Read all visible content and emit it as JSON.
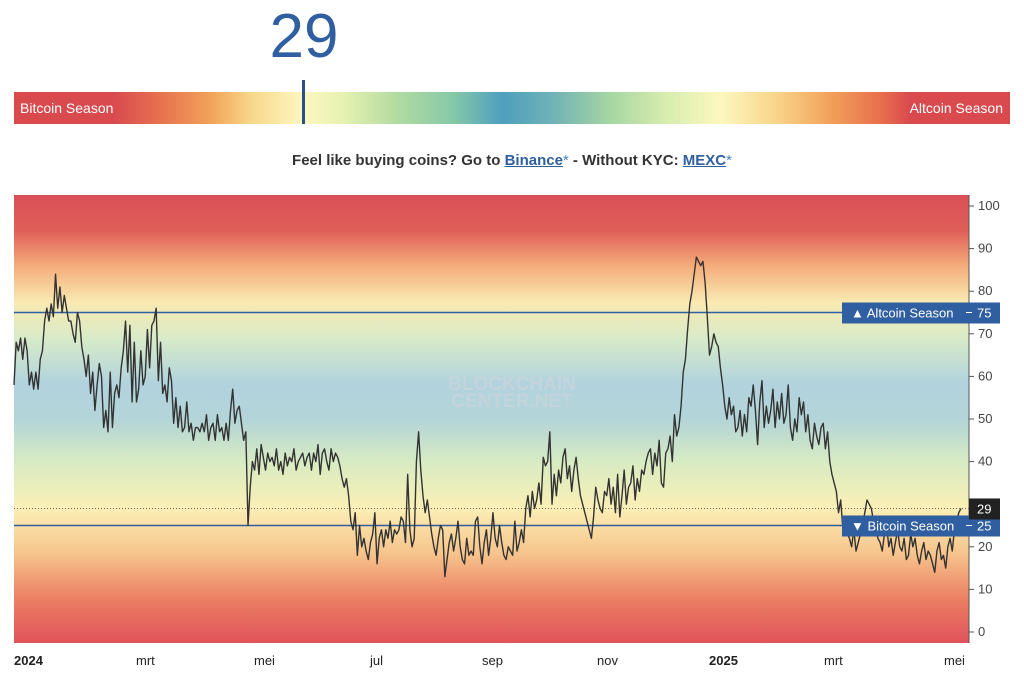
{
  "index": {
    "value": "29"
  },
  "gauge": {
    "left_label": "Bitcoin Season",
    "right_label": "Altcoin Season"
  },
  "promo": {
    "prefix": "Feel like buying coins? Go to ",
    "link1": "Binance",
    "star": "*",
    "middle": " - Without KYC: ",
    "link2": "MEXC"
  },
  "watermark": {
    "line1": "BLOCKCHAIN",
    "line2": "CENTER.NET"
  },
  "chart_data": {
    "type": "line",
    "ylim": [
      0,
      100
    ],
    "y_ticks": [
      0,
      10,
      20,
      30,
      40,
      50,
      60,
      70,
      80,
      90,
      100
    ],
    "x_ticks": [
      {
        "label": "2024",
        "bold": true
      },
      {
        "label": "mrt",
        "bold": false
      },
      {
        "label": "mei",
        "bold": false
      },
      {
        "label": "jul",
        "bold": false
      },
      {
        "label": "sep",
        "bold": false
      },
      {
        "label": "nov",
        "bold": false
      },
      {
        "label": "2025",
        "bold": true
      },
      {
        "label": "mrt",
        "bold": false
      },
      {
        "label": "mei",
        "bold": false
      }
    ],
    "thresholds": [
      {
        "label": "▲ Altcoin Season",
        "value": 75,
        "value_label": "75"
      },
      {
        "label": "▼ Bitcoin Season",
        "value": 25,
        "value_label": "25"
      }
    ],
    "current": {
      "value": 29,
      "label": "29"
    },
    "colors": {
      "line": "#333333",
      "threshold": "#2f5ea1",
      "badge": "#2f5ea1",
      "current_badge": "#222222"
    },
    "series": [
      {
        "values": [
          58,
          68,
          66,
          69,
          64,
          69,
          66,
          58,
          61,
          57,
          61,
          57,
          64,
          66,
          73,
          76,
          73,
          77,
          74,
          84,
          76,
          81,
          75,
          79,
          76,
          73,
          73,
          70,
          68,
          75,
          73,
          67,
          64,
          60,
          65,
          56,
          61,
          52,
          58,
          63,
          60,
          48,
          52,
          47,
          61,
          48,
          56,
          58,
          55,
          62,
          66,
          73,
          61,
          72,
          54,
          68,
          54,
          57,
          66,
          58,
          60,
          71,
          62,
          72,
          73,
          76,
          59,
          68,
          56,
          58,
          54,
          62,
          59,
          49,
          55,
          48,
          53,
          47,
          48,
          54,
          47,
          49,
          45,
          48,
          48,
          47,
          49,
          47,
          51,
          45,
          48,
          49,
          45,
          51,
          47,
          48,
          45,
          49,
          45,
          52,
          57,
          49,
          52,
          53,
          49,
          45,
          47,
          25,
          34,
          40,
          38,
          43,
          37,
          44,
          41,
          38,
          42,
          40,
          41,
          39,
          43,
          38,
          40,
          37,
          42,
          39,
          41,
          40,
          43,
          38,
          40,
          41,
          42,
          39,
          41,
          42,
          38,
          42,
          40,
          44,
          37,
          42,
          43,
          40,
          38,
          43,
          40,
          42,
          41,
          39,
          36,
          34,
          36,
          32,
          26,
          24,
          28,
          18,
          25,
          20,
          22,
          19,
          17,
          21,
          23,
          28,
          16,
          22,
          24,
          20,
          24,
          22,
          26,
          21,
          24,
          23,
          24,
          27,
          26,
          21,
          37,
          24,
          20,
          22,
          40,
          47,
          38,
          32,
          28,
          31,
          27,
          23,
          20,
          18,
          22,
          25,
          24,
          13,
          17,
          21,
          23,
          19,
          22,
          26,
          20,
          17,
          16,
          22,
          18,
          19,
          18,
          26,
          27,
          20,
          16,
          21,
          24,
          18,
          22,
          28,
          22,
          20,
          25,
          21,
          18,
          17,
          20,
          19,
          18,
          26,
          19,
          21,
          24,
          21,
          29,
          32,
          27,
          33,
          29,
          31,
          35,
          30,
          41,
          39,
          40,
          47,
          30,
          37,
          32,
          38,
          35,
          41,
          43,
          36,
          39,
          33,
          38,
          41,
          36,
          32,
          30,
          28,
          26,
          24,
          22,
          27,
          34,
          31,
          29,
          28,
          33,
          32,
          36,
          30,
          34,
          28,
          37,
          27,
          32,
          38,
          30,
          34,
          35,
          39,
          31,
          36,
          33,
          38,
          37,
          40,
          42,
          43,
          37,
          42,
          39,
          45,
          35,
          34,
          42,
          43,
          46,
          40,
          51,
          46,
          48,
          53,
          61,
          64,
          71,
          77,
          80,
          84,
          88,
          87,
          86,
          87,
          82,
          74,
          65,
          67,
          70,
          68,
          67,
          62,
          58,
          53,
          50,
          55,
          51,
          53,
          47,
          48,
          52,
          46,
          51,
          47,
          55,
          53,
          58,
          52,
          44,
          54,
          59,
          48,
          53,
          49,
          52,
          57,
          48,
          54,
          50,
          56,
          49,
          51,
          58,
          48,
          45,
          50,
          47,
          55,
          51,
          54,
          47,
          51,
          45,
          43,
          49,
          46,
          44,
          48,
          49,
          43,
          47,
          40,
          37,
          35,
          33,
          28,
          31,
          24,
          25,
          23,
          22,
          20,
          24,
          19,
          21,
          23,
          25,
          28,
          31,
          30,
          29,
          26,
          24,
          22,
          21,
          19,
          23,
          25,
          20,
          22,
          18,
          21,
          24,
          20,
          19,
          22,
          17,
          18,
          23,
          20,
          22,
          18,
          16,
          19,
          21,
          17,
          19,
          18,
          16,
          14,
          19,
          21,
          17,
          18,
          15,
          20,
          22,
          19,
          24,
          26,
          28,
          29
        ]
      }
    ]
  }
}
